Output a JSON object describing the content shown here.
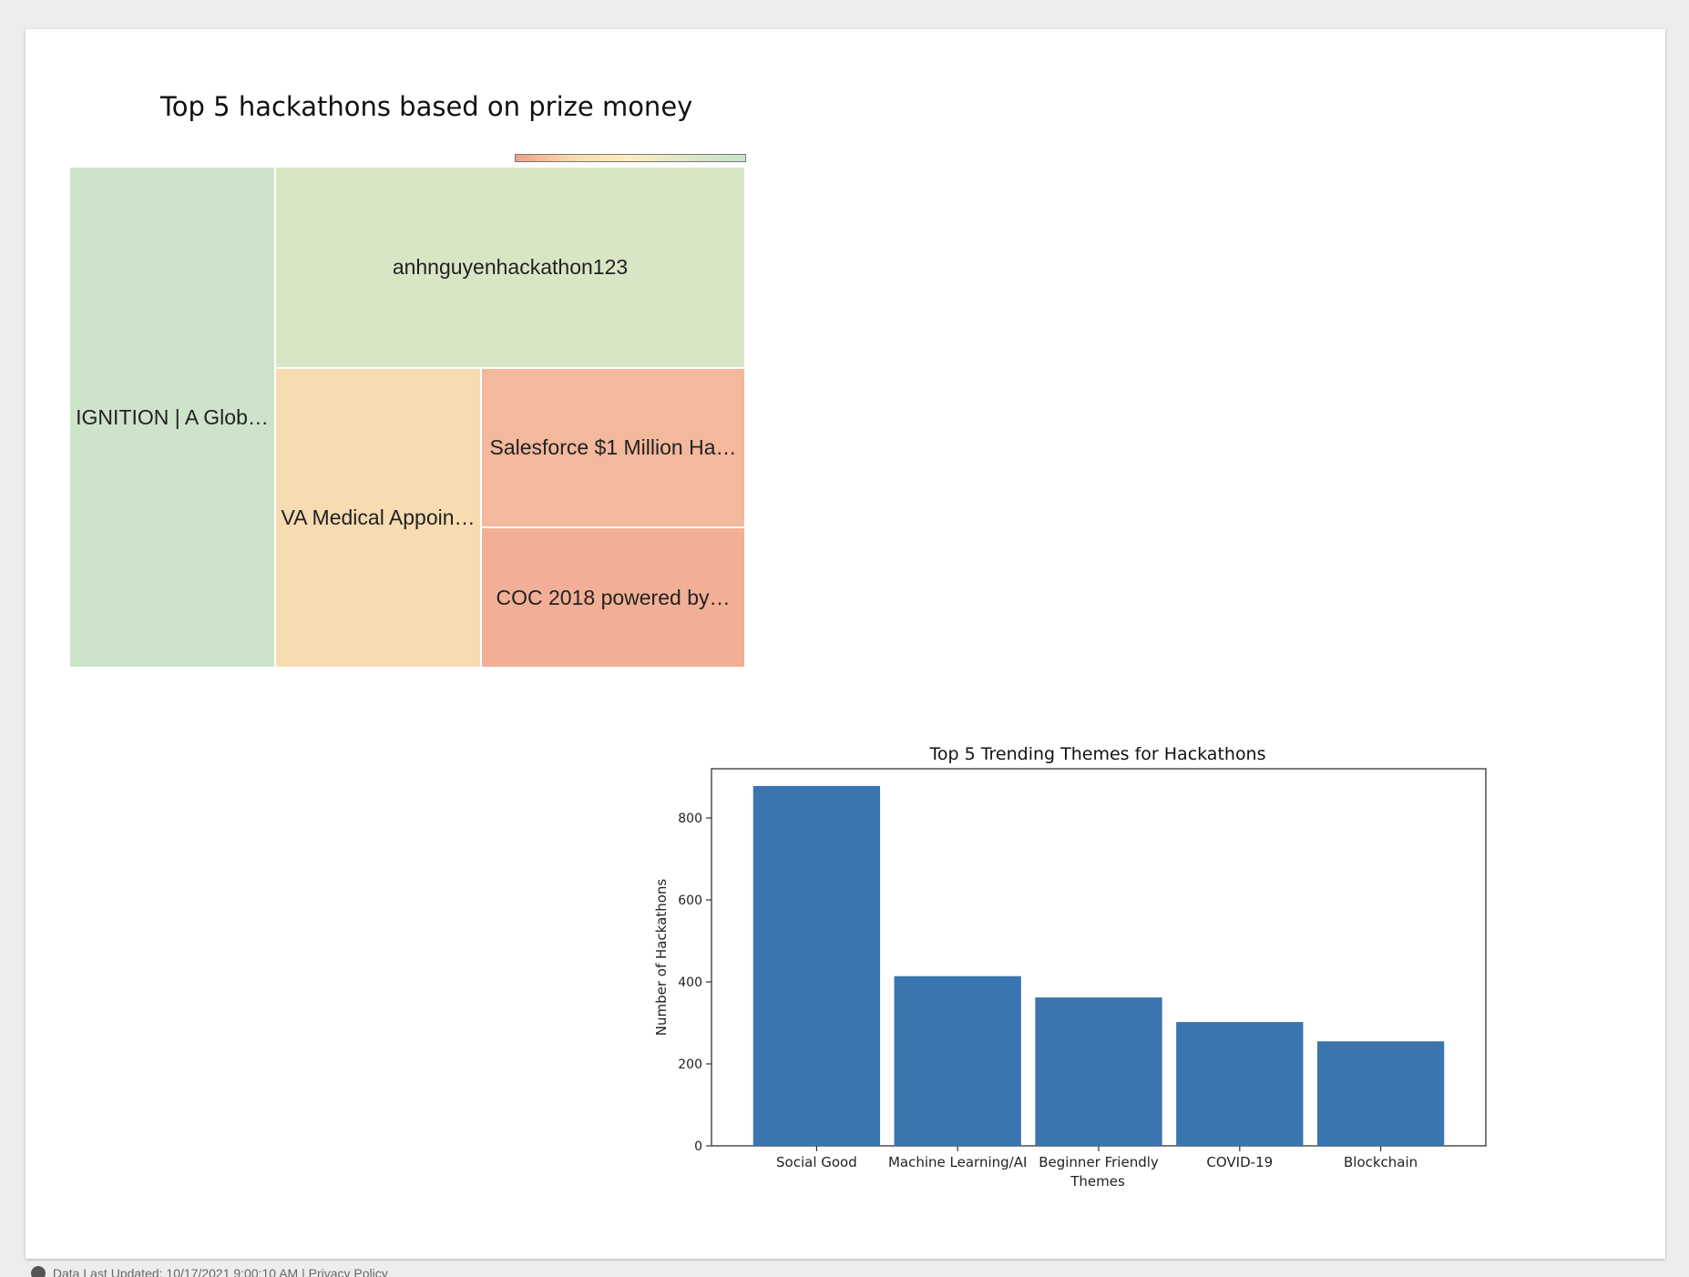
{
  "footer": {
    "text": "Data Last Updated: 10/17/2021 9:00:10 AM",
    "separator": "|",
    "privacy_link": "Privacy Policy"
  },
  "colors": {
    "scale": [
      "#f0a08c",
      "#f8dcae",
      "#fbeec0",
      "#dde7c8",
      "#c9e4cc"
    ],
    "bar": "#3a75b0"
  },
  "chart_data": [
    {
      "type": "treemap",
      "title": "Top 5 hackathons based on prize money",
      "items": [
        {
          "label": "IGNITION | A Glob…",
          "color": "#cde4ca"
        },
        {
          "label": "anhnguyenhackathon123",
          "color": "#d9e6c6"
        },
        {
          "label": "VA Medical Appoin…",
          "color": "#f7dbb1"
        },
        {
          "label": "Salesforce $1 Million Ha…",
          "color": "#f4b89c"
        },
        {
          "label": "COC 2018 powered by…",
          "color": "#f2af96"
        }
      ]
    },
    {
      "type": "bar",
      "title": "Top 5 Trending Themes for Hackathons",
      "xlabel": "Themes",
      "ylabel": "Number of Hackathons",
      "categories": [
        "Social Good",
        "Machine Learning/AI",
        "Beginner Friendly",
        "COVID-19",
        "Blockchain"
      ],
      "values": [
        878,
        414,
        362,
        302,
        255
      ],
      "ylim": [
        0,
        920
      ],
      "yticks": [
        0,
        200,
        400,
        600,
        800
      ],
      "grid": false
    }
  ]
}
